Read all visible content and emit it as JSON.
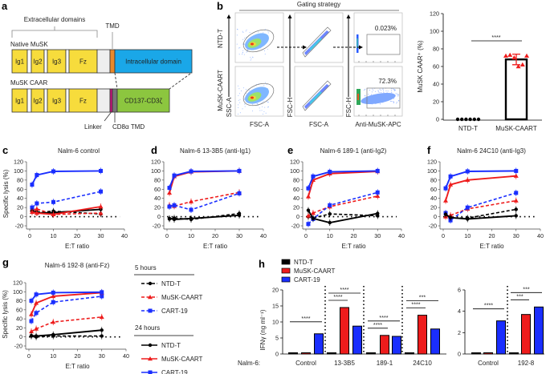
{
  "panel_labels": {
    "a": "a",
    "b": "b",
    "c": "c",
    "d": "d",
    "e": "e",
    "f": "f",
    "g": "g",
    "h": "h"
  },
  "panel_a": {
    "extracellular_label": "Extracellular domains",
    "tmd_label": "TMD",
    "native_label": "Native MuSK",
    "caar_label": "MuSK CAAR",
    "domains": {
      "ig1": "Ig1",
      "ig2": "Ig2",
      "ig3": "Ig3",
      "fz": "Fz",
      "intracellular": "Intracellular domain",
      "signaling": "CD137-CD3ζ"
    },
    "linker_label": "Linker",
    "cd8_label": "CD8α TMD",
    "colors": {
      "extracellular": "#f7dc3c",
      "spacer": "#eeeeee",
      "tmd": "#e8892b",
      "intracellular": "#1aa7e8",
      "linker": "#c8127a",
      "cd8": "#777777",
      "signaling": "#8cc63f"
    }
  },
  "panel_b": {
    "title": "Gating strategy",
    "row_labels": [
      "NTD-T",
      "MuSK-CAART"
    ],
    "y_axes": [
      "SSC-A",
      "FSC-H",
      "FSC-H"
    ],
    "x_axes": [
      "FSC-A",
      "FSC-A",
      "Anti-MuSK-APC"
    ],
    "gate_percentages": [
      "0.023%",
      "72.3%"
    ]
  },
  "legend_g": {
    "group_5h": "5 hours",
    "group_24h": "24 hours",
    "items_5h": [
      "NTD-T",
      "MuSK-CAART",
      "CART-19"
    ],
    "items_24h": [
      "NTD-T",
      "MuSK-CAART",
      "CART-19"
    ]
  },
  "legend_h": {
    "items": [
      "NTD-T",
      "MuSK-CAART",
      "CART-19"
    ],
    "row_prefix": "Nalm-6:"
  },
  "colors": {
    "NTD-T": "#000000",
    "MuSK-CAART": "#ee1c1c",
    "CART-19": "#1a2eff"
  },
  "chart_data": [
    {
      "id": "b_bar",
      "type": "bar",
      "categories": [
        "NTD-T",
        "MuSK-CAART"
      ],
      "values": [
        0,
        68
      ],
      "error": [
        0,
        6
      ],
      "points": [
        [
          0,
          0,
          0,
          0,
          0,
          0
        ],
        [
          72,
          73,
          70,
          60,
          62,
          72
        ]
      ],
      "ylabel": "MuSK CAAR⁺ (%)",
      "ylim": [
        0,
        120
      ],
      "yticks": [
        0,
        20,
        40,
        60,
        80,
        100,
        120
      ],
      "significance": "****"
    },
    {
      "id": "c",
      "type": "line",
      "title": "Nalm-6 control",
      "xlabel": "E:T ratio",
      "ylabel": "Specific lysis (%)",
      "x": [
        1,
        3,
        10,
        30
      ],
      "xlim": [
        0,
        40
      ],
      "ylim": [
        -20,
        120
      ],
      "xticks": [
        0,
        10,
        20,
        30,
        40
      ],
      "yticks": [
        -20,
        0,
        20,
        40,
        60,
        80,
        100,
        120
      ],
      "series": [
        {
          "name": "NTD-T",
          "time": "5 hours",
          "values": [
            14,
            10,
            12,
            6
          ]
        },
        {
          "name": "MuSK-CAART",
          "time": "5 hours",
          "values": [
            15,
            17,
            5,
            8
          ]
        },
        {
          "name": "CART-19",
          "time": "5 hours",
          "values": [
            20,
            29,
            32,
            55
          ]
        },
        {
          "name": "NTD-T",
          "time": "24 hours",
          "values": [
            12,
            8,
            9,
            16
          ]
        },
        {
          "name": "MuSK-CAART",
          "time": "24 hours",
          "values": [
            10,
            8,
            5,
            22
          ]
        },
        {
          "name": "CART-19",
          "time": "24 hours",
          "values": [
            70,
            91,
            99,
            100
          ]
        }
      ]
    },
    {
      "id": "d",
      "type": "line",
      "title": "Nalm-6 13-3B5 (anti-Ig1)",
      "xlabel": "E:T ratio",
      "ylabel": "",
      "x": [
        1,
        3,
        10,
        30
      ],
      "xlim": [
        0,
        40
      ],
      "ylim": [
        -20,
        120
      ],
      "xticks": [
        0,
        10,
        20,
        30,
        40
      ],
      "yticks": [
        -20,
        0,
        20,
        40,
        60,
        80,
        100,
        120
      ],
      "series": [
        {
          "name": "NTD-T",
          "time": "5 hours",
          "values": [
            -5,
            -3,
            -6,
            7
          ]
        },
        {
          "name": "MuSK-CAART",
          "time": "5 hours",
          "values": [
            25,
            23,
            33,
            53
          ]
        },
        {
          "name": "CART-19",
          "time": "5 hours",
          "values": [
            22,
            25,
            15,
            51
          ]
        },
        {
          "name": "NTD-T",
          "time": "24 hours",
          "values": [
            -4,
            -6,
            -4,
            3
          ]
        },
        {
          "name": "MuSK-CAART",
          "time": "24 hours",
          "values": [
            52,
            88,
            98,
            100
          ]
        },
        {
          "name": "CART-19",
          "time": "24 hours",
          "values": [
            63,
            90,
            99,
            100
          ]
        }
      ]
    },
    {
      "id": "e",
      "type": "line",
      "title": "Nalm-6 189-1 (anti-Ig2)",
      "xlabel": "E:T ratio",
      "ylabel": "",
      "x": [
        1,
        3,
        10,
        30
      ],
      "xlim": [
        0,
        40
      ],
      "ylim": [
        -20,
        120
      ],
      "xticks": [
        0,
        10,
        20,
        30,
        40
      ],
      "yticks": [
        -20,
        0,
        20,
        40,
        60,
        80,
        100,
        120
      ],
      "series": [
        {
          "name": "NTD-T",
          "time": "5 hours",
          "values": [
            0,
            -3,
            6,
            2
          ]
        },
        {
          "name": "MuSK-CAART",
          "time": "5 hours",
          "values": [
            2,
            8,
            22,
            45
          ]
        },
        {
          "name": "CART-19",
          "time": "5 hours",
          "values": [
            -16,
            -5,
            25,
            53
          ]
        },
        {
          "name": "NTD-T",
          "time": "24 hours",
          "values": [
            14,
            -4,
            -13,
            7
          ]
        },
        {
          "name": "MuSK-CAART",
          "time": "24 hours",
          "values": [
            44,
            80,
            94,
            99
          ]
        },
        {
          "name": "CART-19",
          "time": "24 hours",
          "values": [
            62,
            88,
            98,
            100
          ]
        }
      ]
    },
    {
      "id": "f",
      "type": "line",
      "title": "Nalm-6 24C10 (anti-Ig3)",
      "xlabel": "E:T ratio",
      "ylabel": "",
      "x": [
        1,
        3,
        10,
        30
      ],
      "xlim": [
        0,
        40
      ],
      "ylim": [
        -20,
        120
      ],
      "xticks": [
        0,
        10,
        20,
        30,
        40
      ],
      "yticks": [
        -20,
        0,
        20,
        40,
        60,
        80,
        100,
        120
      ],
      "series": [
        {
          "name": "NTD-T",
          "time": "5 hours",
          "values": [
            5,
            -3,
            -3,
            16
          ]
        },
        {
          "name": "MuSK-CAART",
          "time": "5 hours",
          "values": [
            0,
            3,
            17,
            35
          ]
        },
        {
          "name": "CART-19",
          "time": "5 hours",
          "values": [
            8,
            -8,
            20,
            52
          ]
        },
        {
          "name": "NTD-T",
          "time": "24 hours",
          "values": [
            5,
            -2,
            -5,
            2
          ]
        },
        {
          "name": "MuSK-CAART",
          "time": "24 hours",
          "values": [
            35,
            70,
            80,
            89
          ]
        },
        {
          "name": "CART-19",
          "time": "24 hours",
          "values": [
            62,
            88,
            99,
            100
          ]
        }
      ]
    },
    {
      "id": "g",
      "type": "line",
      "title": "Nalm-6 192-8 (anti-Fz)",
      "xlabel": "E:T ratio",
      "ylabel": "Specific lysis (%)",
      "x": [
        1,
        3,
        10,
        30
      ],
      "xlim": [
        0,
        40
      ],
      "ylim": [
        -20,
        120
      ],
      "xticks": [
        0,
        10,
        20,
        30,
        40
      ],
      "yticks": [
        -20,
        0,
        20,
        40,
        60,
        80,
        100,
        120
      ],
      "series": [
        {
          "name": "NTD-T",
          "time": "5 hours",
          "values": [
            2,
            0,
            2,
            2
          ]
        },
        {
          "name": "MuSK-CAART",
          "time": "5 hours",
          "values": [
            12,
            18,
            33,
            44
          ]
        },
        {
          "name": "CART-19",
          "time": "5 hours",
          "values": [
            35,
            53,
            77,
            90
          ]
        },
        {
          "name": "NTD-T",
          "time": "24 hours",
          "values": [
            3,
            2,
            5,
            15
          ]
        },
        {
          "name": "MuSK-CAART",
          "time": "24 hours",
          "values": [
            50,
            75,
            90,
            98
          ]
        },
        {
          "name": "CART-19",
          "time": "24 hours",
          "values": [
            80,
            94,
            98,
            99
          ]
        }
      ]
    },
    {
      "id": "h_left",
      "type": "bar",
      "ylabel": "IFNγ (ng ml⁻¹)",
      "ylim": [
        0,
        20
      ],
      "yticks": [
        0,
        5,
        10,
        15,
        20
      ],
      "categories": [
        "Control",
        "13-3B5",
        "189-1",
        "24C10"
      ],
      "series": [
        {
          "name": "NTD-T",
          "values": [
            0,
            0,
            0,
            0
          ]
        },
        {
          "name": "MuSK-CAART",
          "values": [
            0,
            14.5,
            5.8,
            12.1
          ]
        },
        {
          "name": "CART-19",
          "values": [
            6.3,
            8.7,
            5.5,
            7.8
          ]
        }
      ],
      "comparisons": [
        {
          "group": "Control",
          "from": "NTD-T",
          "to": "CART-19",
          "label": "****"
        },
        {
          "group": "13-3B5",
          "from": "NTD-T",
          "to": "MuSK-CAART",
          "label": "****"
        },
        {
          "group": "13-3B5",
          "from": "NTD-T",
          "to": "CART-19",
          "label": "****"
        },
        {
          "group": "189-1",
          "from": "NTD-T",
          "to": "MuSK-CAART",
          "label": "****"
        },
        {
          "group": "189-1",
          "from": "NTD-T",
          "to": "CART-19",
          "label": "****"
        },
        {
          "group": "24C10",
          "from": "NTD-T",
          "to": "MuSK-CAART",
          "label": "****"
        },
        {
          "group": "24C10",
          "from": "NTD-T",
          "to": "CART-19",
          "label": "***"
        }
      ]
    },
    {
      "id": "h_right",
      "type": "bar",
      "ylim": [
        0,
        6
      ],
      "yticks": [
        0,
        2,
        4,
        6
      ],
      "categories": [
        "Control",
        "192-8"
      ],
      "series": [
        {
          "name": "NTD-T",
          "values": [
            0,
            0
          ]
        },
        {
          "name": "MuSK-CAART",
          "values": [
            0,
            3.7
          ]
        },
        {
          "name": "CART-19",
          "values": [
            3.1,
            4.4
          ]
        }
      ],
      "comparisons": [
        {
          "group": "Control",
          "from": "NTD-T",
          "to": "CART-19",
          "label": "****"
        },
        {
          "group": "192-8",
          "from": "NTD-T",
          "to": "MuSK-CAART",
          "label": "***"
        },
        {
          "group": "192-8",
          "from": "NTD-T",
          "to": "CART-19",
          "label": "***"
        }
      ]
    }
  ]
}
